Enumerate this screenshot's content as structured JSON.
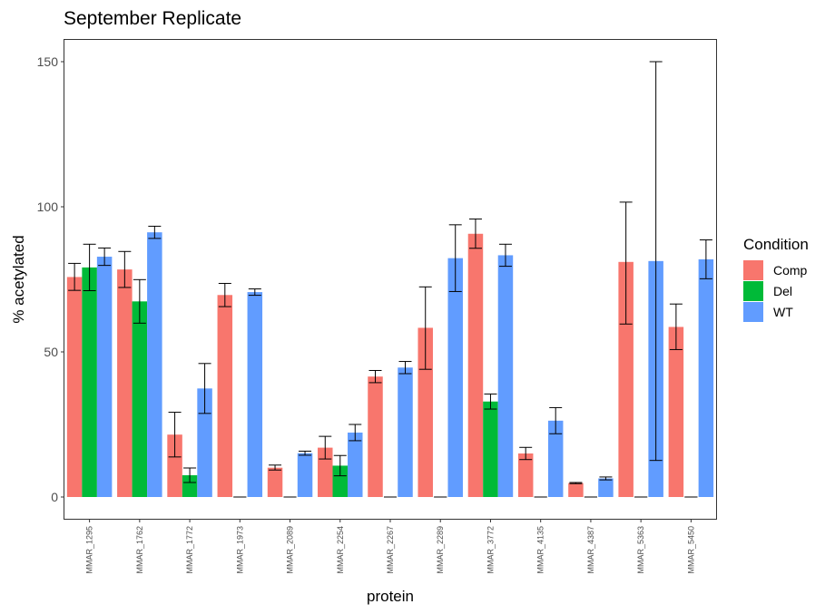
{
  "chart_data": {
    "type": "bar",
    "title": "September Replicate",
    "xlabel": "protein",
    "ylabel": "% acetylated",
    "ylim": [
      -6,
      157
    ],
    "yticks": [
      0,
      50,
      100,
      150
    ],
    "legend": {
      "title": "Condition",
      "position": "right"
    },
    "categories": [
      "MMAR_1295",
      "MMAR_1762",
      "MMAR_1772",
      "MMAR_1973",
      "MMAR_2089",
      "MMAR_2254",
      "MMAR_2267",
      "MMAR_2289",
      "MMAR_3772",
      "MMAR_4135",
      "MMAR_4387",
      "MMAR_5363",
      "MMAR_5450"
    ],
    "series": [
      {
        "name": "Comp",
        "color": "#F8766D",
        "values": [
          75.8,
          78.4,
          21.5,
          69.6,
          10.1,
          17.0,
          41.5,
          58.3,
          90.7,
          15.0,
          4.8,
          81.0,
          58.6
        ],
        "err_low": [
          71.2,
          72.2,
          13.8,
          65.6,
          9.3,
          13.1,
          39.4,
          44.0,
          85.7,
          12.9,
          4.6,
          59.6,
          50.8
        ],
        "err_high": [
          80.5,
          84.6,
          29.2,
          73.6,
          11.0,
          20.9,
          43.6,
          72.4,
          95.8,
          17.1,
          5.0,
          101.6,
          66.5
        ]
      },
      {
        "name": "Del",
        "color": "#00BA38",
        "values": [
          79.1,
          67.4,
          7.5,
          0,
          0,
          10.8,
          0,
          0,
          32.9,
          0,
          0,
          0,
          0
        ],
        "err_low": [
          71.1,
          59.9,
          5.0,
          0,
          0,
          7.3,
          0,
          0,
          30.3,
          0,
          0,
          0,
          0
        ],
        "err_high": [
          87.1,
          74.9,
          10.0,
          0,
          0,
          14.3,
          0,
          0,
          35.5,
          0,
          0,
          0,
          0
        ]
      },
      {
        "name": "WT",
        "color": "#619CFF",
        "values": [
          82.8,
          91.2,
          37.4,
          70.6,
          15.1,
          22.2,
          44.6,
          82.3,
          83.3,
          26.3,
          6.4,
          81.3,
          81.9
        ],
        "err_low": [
          79.8,
          89.1,
          28.8,
          69.5,
          14.4,
          19.4,
          42.5,
          70.8,
          79.5,
          21.8,
          5.9,
          12.6,
          75.2
        ],
        "err_high": [
          85.8,
          93.3,
          46.0,
          71.7,
          15.8,
          25.0,
          46.7,
          93.8,
          87.1,
          30.8,
          6.9,
          150.0,
          88.6
        ]
      }
    ]
  }
}
